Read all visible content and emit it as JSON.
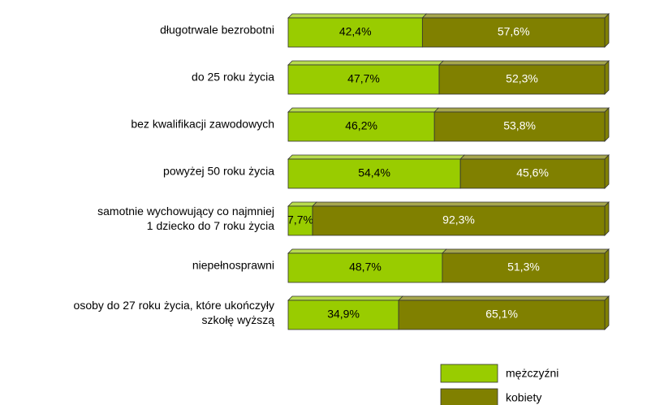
{
  "chart_data": {
    "type": "stacked-bar-horizontal",
    "categories": [
      "długotrwale bezrobotni",
      "do 25 roku życia",
      "bez kwalifikacji zawodowych",
      "powyżej 50 roku życia",
      "samotnie wychowujący co najmniej\n1 dziecko do 7 roku życia",
      "niepełnosprawni",
      "osoby do 27 roku życia, które ukończyły\nszkołę wyższą"
    ],
    "series": [
      {
        "name": "mężczyźni",
        "color": "#99cc00",
        "values": [
          42.4,
          47.7,
          46.2,
          54.4,
          7.7,
          48.7,
          34.9
        ],
        "value_labels": [
          "42,4%",
          "47,7%",
          "46,2%",
          "54,4%",
          "7,7%",
          "48,7%",
          "34,9%"
        ]
      },
      {
        "name": "kobiety",
        "color": "#808000",
        "values": [
          57.6,
          52.3,
          53.8,
          45.6,
          92.3,
          51.3,
          65.1
        ],
        "value_labels": [
          "57,6%",
          "52,3%",
          "53,8%",
          "45,6%",
          "92,3%",
          "51,3%",
          "65,1%"
        ]
      }
    ],
    "xlim": [
      0,
      100
    ],
    "legend": "bottom"
  }
}
